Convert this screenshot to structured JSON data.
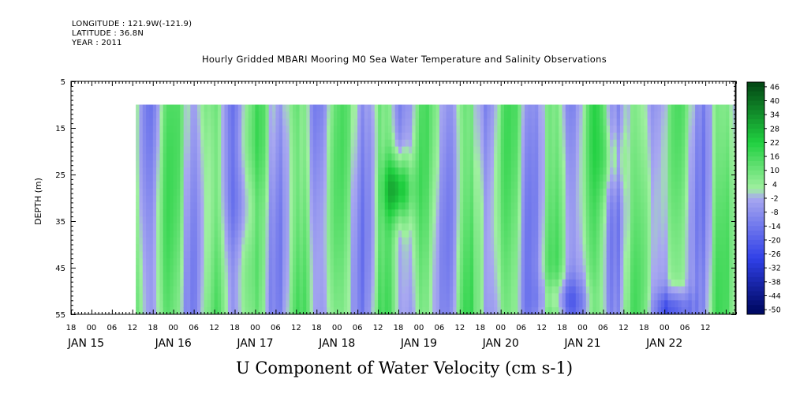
{
  "header": {
    "longitude": "LONGITUDE : 121.9W(-121.9)",
    "latitude": "LATITUDE : 36.8N",
    "year": "YEAR : 2011"
  },
  "chart_data": {
    "type": "heatmap",
    "title": "Hourly Gridded MBARI Mooring M0 Sea Water Temperature and Salinity Observations",
    "xlabel": "U Component of Water Velocity (cm s-1)",
    "ylabel": "DEPTH (m)",
    "ylim": [
      55,
      5
    ],
    "y_tick_labels": [
      "5",
      "15",
      "25",
      "35",
      "45",
      "55"
    ],
    "x_hour_labels": [
      "18",
      "00",
      "06",
      "12",
      "18",
      "00",
      "06",
      "12",
      "18",
      "00",
      "06",
      "12",
      "18",
      "00",
      "06",
      "12",
      "18",
      "00",
      "06",
      "12",
      "18",
      "00",
      "06",
      "12",
      "18",
      "00",
      "06",
      "12",
      "18",
      "00",
      "06",
      "12"
    ],
    "day_labels": [
      "JAN 15",
      "JAN 16",
      "JAN 17",
      "JAN 18",
      "JAN 19",
      "JAN 20",
      "JAN 21",
      "JAN 22"
    ],
    "x_range_hours": [
      -6,
      189
    ],
    "data_start_hour": 13,
    "data_depth_range_m": [
      10,
      55
    ],
    "colorbar_labels": [
      "46",
      "40",
      "34",
      "28",
      "22",
      "16",
      "10",
      "4",
      "-2",
      "-8",
      "-14",
      "-20",
      "-26",
      "-32",
      "-38",
      "-44",
      "-50"
    ],
    "value_range": [
      -50,
      50
    ],
    "colors": {
      "deep_negative": "#000a66",
      "negative": "#3040e8",
      "near_zero_negative": "#a8a8f0",
      "near_zero_positive": "#a0f0a0",
      "positive": "#20d040",
      "deep_positive": "#003a10"
    }
  }
}
